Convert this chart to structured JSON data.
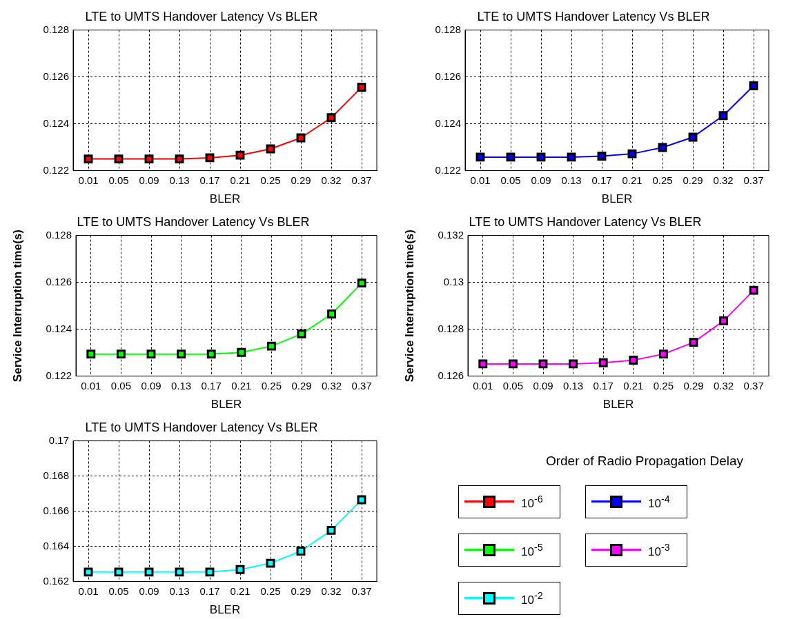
{
  "chart_data": [
    {
      "type": "line",
      "title": "LTE to UMTS Handover Latency Vs BLER",
      "xlabel": "BLER",
      "categories": [
        "0.01",
        "0.05",
        "0.09",
        "0.13",
        "0.17",
        "0.21",
        "0.25",
        "0.29",
        "0.32",
        "0.37"
      ],
      "ylim": [
        0.122,
        0.128
      ],
      "yticks": [
        0.122,
        0.124,
        0.126,
        0.128
      ],
      "grid": true,
      "marker": "square",
      "line_style": "solid",
      "legend": "bottom right",
      "legend_title": "Order of Radio Propagation Delay",
      "series": [
        {
          "name": "10$^{-6}$",
          "color": "#ff0000",
          "values": [
            0.1225,
            0.1225,
            0.1225,
            0.1225,
            0.12255,
            0.12266,
            0.12293,
            0.1234,
            0.12426,
            0.12556
          ]
        }
      ]
    },
    {
      "type": "line",
      "title": "LTE to UMTS Handover Latency Vs BLER",
      "xlabel": "BLER",
      "categories": [
        "0.01",
        "0.05",
        "0.09",
        "0.13",
        "0.17",
        "0.21",
        "0.25",
        "0.29",
        "0.32",
        "0.37"
      ],
      "ylim": [
        0.122,
        0.128
      ],
      "yticks": [
        0.122,
        0.124,
        0.126,
        0.128
      ],
      "grid": true,
      "marker": "square",
      "line_style": "solid",
      "series": [
        {
          "name": "10$^{-4}$",
          "color": "#0000ff",
          "values": [
            0.12258,
            0.12258,
            0.12258,
            0.12258,
            0.12262,
            0.12272,
            0.12299,
            0.12343,
            0.12435,
            0.12562
          ]
        }
      ]
    },
    {
      "type": "line",
      "title": "LTE to UMTS Handover Latency Vs BLER",
      "xlabel": "BLER",
      "ylabel": "Service Interruption time(s)",
      "categories": [
        "0.01",
        "0.05",
        "0.09",
        "0.13",
        "0.17",
        "0.21",
        "0.25",
        "0.29",
        "0.32",
        "0.37"
      ],
      "ylim": [
        0.122,
        0.128
      ],
      "yticks": [
        0.122,
        0.124,
        0.126,
        0.128
      ],
      "grid": true,
      "marker": "square",
      "line_style": "solid",
      "series": [
        {
          "name": "10$^{-5}$",
          "color": "#00ff00",
          "values": [
            0.12294,
            0.12294,
            0.12294,
            0.12294,
            0.12294,
            0.12301,
            0.12328,
            0.1238,
            0.12465,
            0.12597
          ]
        }
      ]
    },
    {
      "type": "line",
      "title": "LTE to UMTS Handover Latency Vs BLER",
      "xlabel": "BLER",
      "ylabel": "Service Interruption time(s)",
      "categories": [
        "0.01",
        "0.05",
        "0.09",
        "0.13",
        "0.17",
        "0.21",
        "0.25",
        "0.29",
        "0.32",
        "0.37"
      ],
      "ylim": [
        0.126,
        0.132
      ],
      "yticks": [
        0.126,
        0.128,
        0.13,
        0.132
      ],
      "grid": true,
      "marker": "square",
      "line_style": "solid",
      "series": [
        {
          "name": "10$^{-3}$",
          "color": "#ff00ff",
          "values": [
            0.12652,
            0.12652,
            0.12652,
            0.12652,
            0.12657,
            0.12668,
            0.12694,
            0.12744,
            0.12836,
            0.12966
          ]
        }
      ]
    },
    {
      "type": "line",
      "title": "LTE to UMTS Handover Latency Vs BLER",
      "xlabel": "BLER",
      "categories": [
        "0.01",
        "0.05",
        "0.09",
        "0.13",
        "0.17",
        "0.21",
        "0.25",
        "0.29",
        "0.32",
        "0.37"
      ],
      "ylim": [
        0.162,
        0.17
      ],
      "yticks": [
        0.162,
        0.164,
        0.166,
        0.168,
        0.17
      ],
      "grid": true,
      "marker": "square",
      "line_style": "solid",
      "series": [
        {
          "name": "10$^{-2}$",
          "color": "#00ffff",
          "values": [
            0.16254,
            0.16254,
            0.16254,
            0.16254,
            0.16254,
            0.16268,
            0.16304,
            0.16373,
            0.16491,
            0.16665
          ]
        }
      ]
    }
  ]
}
